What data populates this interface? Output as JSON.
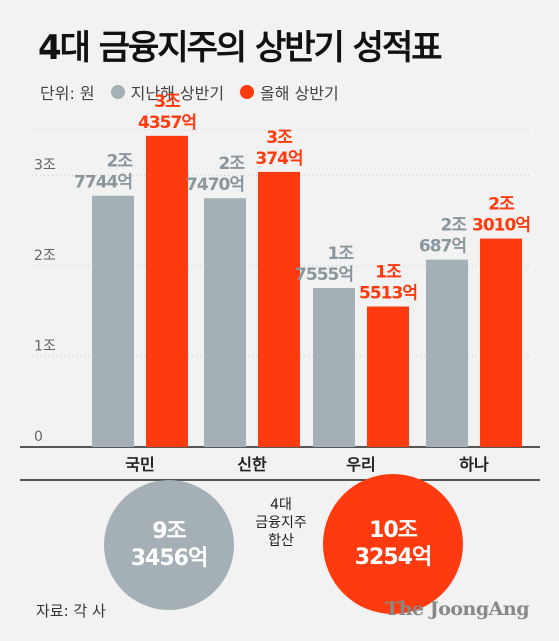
{
  "chart_data": {
    "type": "bar",
    "title": "4대 금융지주의 상반기 성적표",
    "unit_label": "단위: 원",
    "categories": [
      "국민",
      "신한",
      "우리",
      "하나"
    ],
    "series": [
      {
        "name": "지난해 상반기",
        "color": "#a4b0b6",
        "values": [
          2.7744,
          2.747,
          1.7555,
          2.0687
        ],
        "labels": [
          [
            "2조",
            "7744억"
          ],
          [
            "2조",
            "7470억"
          ],
          [
            "1조",
            "7555억"
          ],
          [
            "2조",
            "687억"
          ]
        ]
      },
      {
        "name": "올해 상반기",
        "color": "#ff3a0f",
        "values": [
          3.4357,
          3.0374,
          1.5513,
          2.301
        ],
        "labels": [
          [
            "3조",
            "4357억"
          ],
          [
            "3조",
            "374억"
          ],
          [
            "1조",
            "5513억"
          ],
          [
            "2조",
            "3010억"
          ]
        ]
      }
    ],
    "yticks": [
      {
        "value": 0,
        "label": "0"
      },
      {
        "value": 1,
        "label": "1조"
      },
      {
        "value": 2,
        "label": "2조"
      },
      {
        "value": 3,
        "label": "3조"
      }
    ],
    "ylim": [
      0,
      3.5
    ],
    "grid": true
  },
  "totals": {
    "caption": [
      "4대",
      "금융지주",
      "합산"
    ],
    "last_year": [
      "9조",
      "3456억"
    ],
    "this_year": [
      "10조",
      "3254억"
    ]
  },
  "source": "자료: 각 사",
  "brand": "The JoongAng"
}
